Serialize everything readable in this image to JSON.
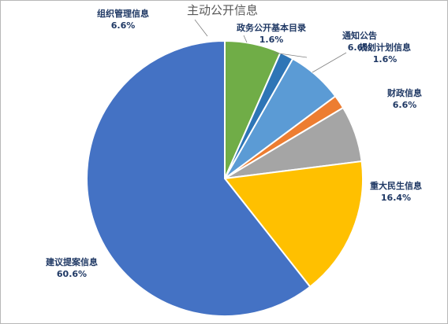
{
  "chart_data": {
    "type": "pie",
    "title": "主动公开信息",
    "slices": [
      {
        "name": "组织管理信息",
        "value": 6.6,
        "label": "6.6%",
        "color": "#70ad47"
      },
      {
        "name": "政务公开基本目录",
        "value": 1.6,
        "label": "1.6%",
        "color": "#2e75b6"
      },
      {
        "name": "通知公告",
        "value": 6.6,
        "label": "6.6%",
        "color": "#5b9bd5"
      },
      {
        "name": "规划计划信息",
        "value": 1.6,
        "label": "1.6%",
        "color": "#ed7d31"
      },
      {
        "name": "财政信息",
        "value": 6.6,
        "label": "6.6%",
        "color": "#a5a5a5"
      },
      {
        "name": "重大民生信息",
        "value": 16.4,
        "label": "16.4%",
        "color": "#ffc000"
      },
      {
        "name": "建议提案信息",
        "value": 60.6,
        "label": "60.6%",
        "color": "#4472c4"
      }
    ]
  }
}
